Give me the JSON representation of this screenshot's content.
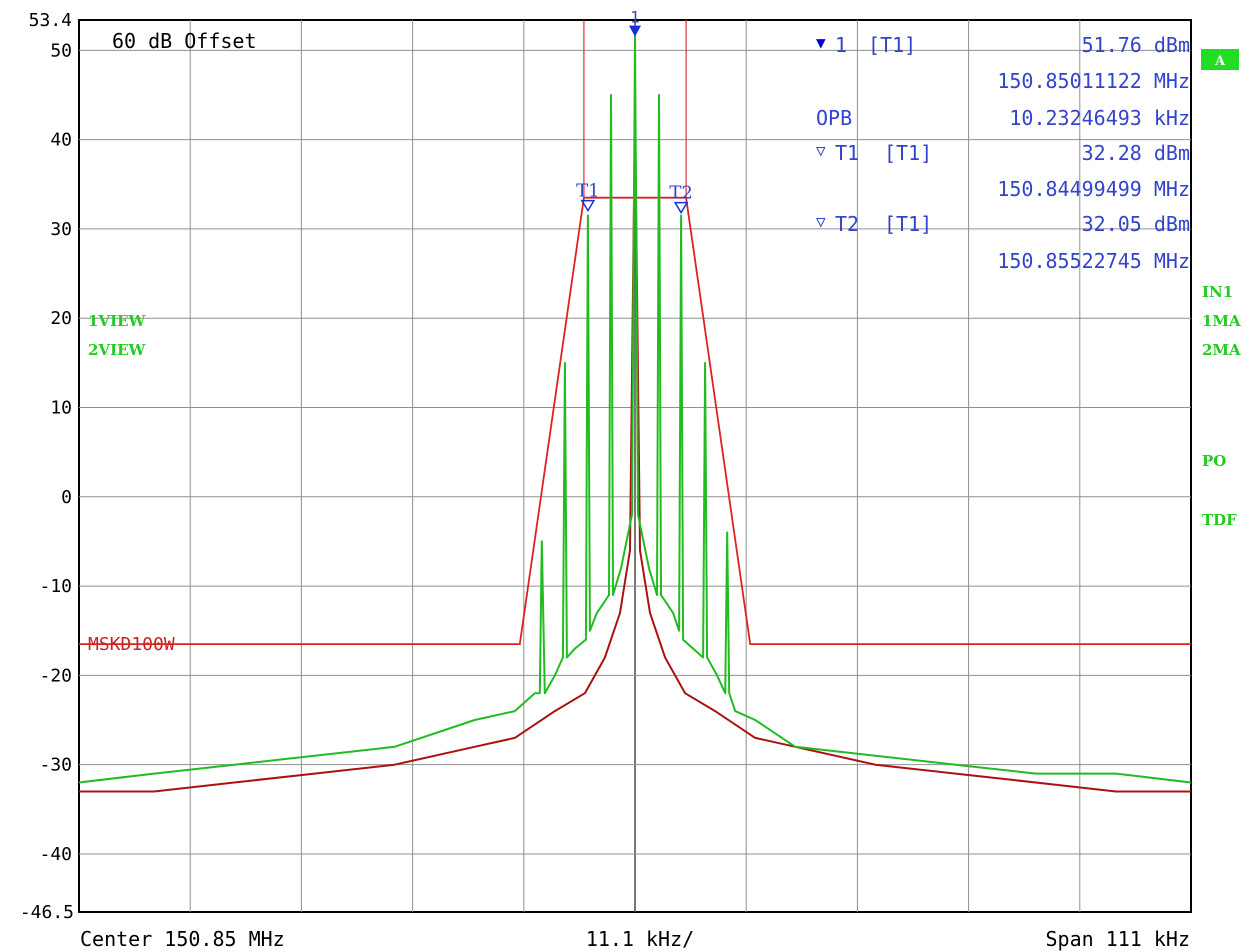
{
  "chart_data": {
    "type": "line",
    "y_top_label": "53.4",
    "y_bottom_label": "-46.5",
    "ylim": [
      -46.5,
      53.4
    ],
    "y_ticks": [
      50,
      40,
      30,
      20,
      10,
      0,
      -10,
      -20,
      -30,
      -40
    ],
    "y_tick_labels": [
      "50",
      "40",
      "30",
      "20",
      "10",
      "0",
      "-10",
      "-20",
      "-30",
      "-40"
    ],
    "x_divisions": 10,
    "grid": true,
    "x_unit": "kHz",
    "offset_label": "60 dB Offset",
    "bottom_labels": {
      "center": "Center 150.85 MHz",
      "div": "11.1 kHz/",
      "span": "Span 111 kHz"
    },
    "view_labels": [
      "1VIEW",
      "2VIEW"
    ],
    "side_labels": {
      "box": "A",
      "in1": "IN1",
      "ma1": "1MA",
      "ma2": "2MA",
      "po": "PO",
      "tdf": "TDF"
    },
    "limit_line": {
      "name": "MSKD100W",
      "points": [
        [
          -55.5,
          -16.5
        ],
        [
          -11.5,
          -16.5
        ],
        [
          -5.1,
          33.5
        ],
        [
          5.1,
          33.5
        ],
        [
          11.5,
          -16.5
        ],
        [
          55.5,
          -16.5
        ]
      ],
      "vlines": [
        -5.1,
        5.1
      ]
    },
    "markers": [
      {
        "name": "1",
        "x": 0.0,
        "y": 51.76
      },
      {
        "name": "T1",
        "x": -4.7,
        "y": 32.28
      },
      {
        "name": "T2",
        "x": 4.6,
        "y": 32.05
      }
    ],
    "marker_table": [
      {
        "label": "1",
        "trace": "[T1]",
        "value": "51.76 dBm"
      },
      {
        "label": "",
        "trace": "",
        "value": "150.85011122 MHz"
      },
      {
        "label": "OPB",
        "trace": "",
        "value": "10.23246493 kHz"
      },
      {
        "label": "T1",
        "trace": "[T1]",
        "value": "32.28 dBm"
      },
      {
        "label": "",
        "trace": "",
        "value": "150.84499499 MHz"
      },
      {
        "label": "T2",
        "trace": "[T1]",
        "value": "32.05 dBm"
      },
      {
        "label": "",
        "trace": "",
        "value": "150.85522745 MHz"
      }
    ],
    "series": [
      {
        "color": "#22bb22",
        "x": [
          -55.5,
          -48,
          -40,
          -32,
          -24,
          -16,
          -12,
          -10,
          -9.5,
          -9.3,
          -9.0,
          -8.0,
          -7.2,
          -7.0,
          -6.8,
          -6.0,
          -4.9,
          -4.7,
          -4.5,
          -3.8,
          -2.6,
          -2.4,
          -2.2,
          -1.4,
          -0.3,
          0.0,
          0.3,
          1.4,
          2.2,
          2.4,
          2.6,
          3.8,
          4.4,
          4.6,
          4.8,
          5.8,
          6.8,
          7.0,
          7.2,
          8.2,
          9.0,
          9.2,
          9.4,
          10,
          12,
          16,
          24,
          32,
          40,
          48,
          55.5
        ],
        "y": [
          -32,
          -31,
          -30,
          -29,
          -28,
          -25,
          -24,
          -22,
          -22,
          -5,
          -22,
          -20,
          -18,
          15,
          -18,
          -17,
          -16,
          31.5,
          -15,
          -13,
          -11,
          45,
          -11,
          -8,
          -2,
          51.5,
          -2,
          -8,
          -11,
          45,
          -11,
          -13,
          -15,
          31.5,
          -16,
          -17,
          -18,
          15,
          -18,
          -20,
          -22,
          -4,
          -22,
          -24,
          -25,
          -28,
          -29,
          -30,
          -31,
          -31,
          -32
        ]
      },
      {
        "color": "#aa1111",
        "x": [
          -55.5,
          -48,
          -40,
          -32,
          -24,
          -16,
          -12,
          -8,
          -5,
          -3,
          -1.5,
          -0.5,
          0.0,
          0.5,
          1.5,
          3,
          5,
          8,
          12,
          16,
          24,
          32,
          40,
          48,
          55.5
        ],
        "y": [
          -33,
          -33,
          -32,
          -31,
          -30,
          -28,
          -27,
          -24,
          -22,
          -18,
          -13,
          -6,
          43,
          -6,
          -13,
          -18,
          -22,
          -24,
          -27,
          -28,
          -30,
          -31,
          -32,
          -33,
          -33
        ]
      }
    ]
  }
}
